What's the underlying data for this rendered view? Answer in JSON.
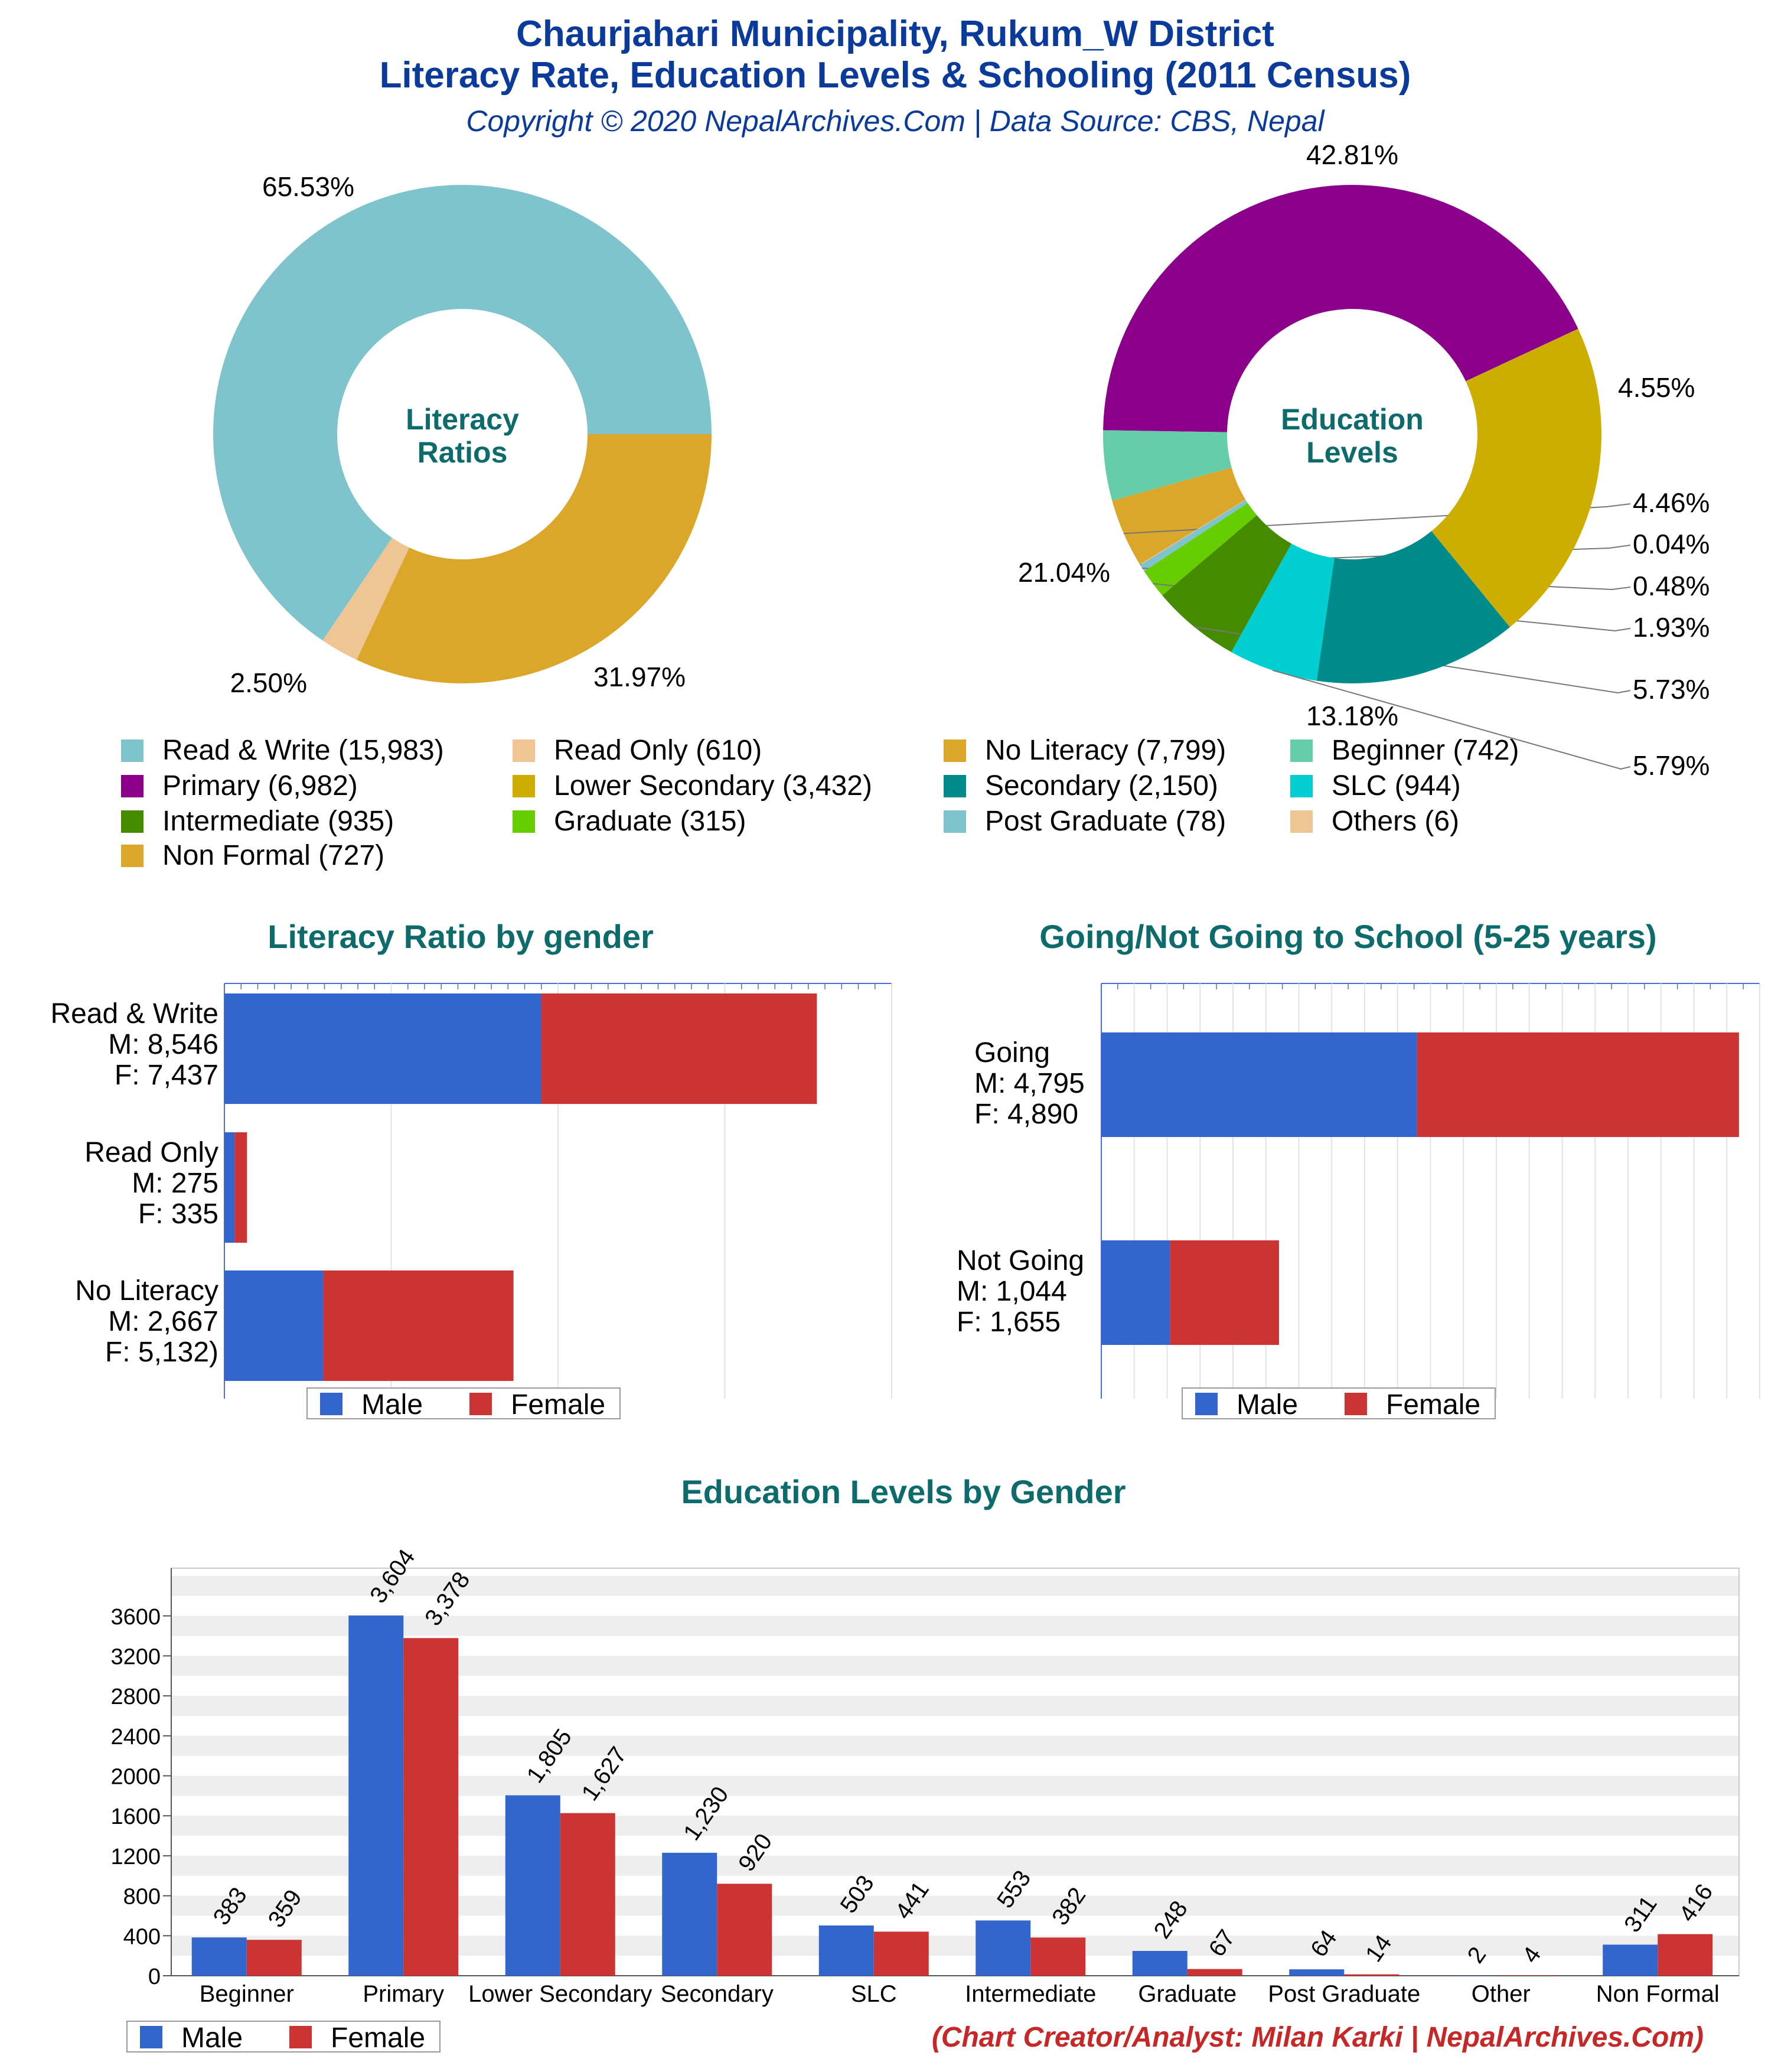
{
  "header": {
    "title_line1": "Chaurjahari Municipality, Rukum_W District",
    "title_line2": "Literacy Rate, Education Levels & Schooling (2011 Census)",
    "copyright": "Copyright © 2020 NepalArchives.Com | Data Source: CBS, Nepal"
  },
  "colors": {
    "male": "#3366cc",
    "female": "#cc3333",
    "title": "#0a3a9a",
    "section_title": "#0e6b6b",
    "credit": "#c62828"
  },
  "legend_items": [
    {
      "label": "Read & Write (15,983)",
      "color": "#7fc4cc"
    },
    {
      "label": "Read Only (610)",
      "color": "#efc594"
    },
    {
      "label": "No Literacy (7,799)",
      "color": "#dba72a"
    },
    {
      "label": "Beginner (742)",
      "color": "#66cdaa"
    },
    {
      "label": "Primary (6,982)",
      "color": "#8b008b"
    },
    {
      "label": "Lower Secondary (3,432)",
      "color": "#ccad00"
    },
    {
      "label": "Secondary (2,150)",
      "color": "#008b8b"
    },
    {
      "label": "SLC (944)",
      "color": "#00ced1"
    },
    {
      "label": "Intermediate (935)",
      "color": "#458b00"
    },
    {
      "label": "Graduate (315)",
      "color": "#66cd00"
    },
    {
      "label": "Post Graduate (78)",
      "color": "#7fc4cc"
    },
    {
      "label": "Others (6)",
      "color": "#efc594"
    },
    {
      "label": "Non Formal (727)",
      "color": "#dba72a"
    }
  ],
  "legend_labels": {
    "male": "Male",
    "female": "Female"
  },
  "chart_data": [
    {
      "type": "pie",
      "title": "Literacy Ratios",
      "center_label": [
        "Literacy",
        "Ratios"
      ],
      "slices": [
        {
          "name": "Read & Write",
          "value": 15983,
          "percent_label": "65.53%",
          "color": "#7fc4cc"
        },
        {
          "name": "Read Only",
          "value": 610,
          "percent_label": "2.50%",
          "color": "#efc594"
        },
        {
          "name": "No Literacy",
          "value": 7799,
          "percent_label": "31.97%",
          "color": "#dba72a"
        }
      ]
    },
    {
      "type": "pie",
      "title": "Education Levels",
      "center_label": [
        "Education",
        "Levels"
      ],
      "slices": [
        {
          "name": "Primary",
          "value": 6982,
          "percent_label": "42.81%",
          "color": "#8b008b"
        },
        {
          "name": "Beginner",
          "value": 742,
          "percent_label": "4.55%",
          "color": "#66cdaa"
        },
        {
          "name": "Non Formal",
          "value": 727,
          "percent_label": "4.46%",
          "color": "#dba72a"
        },
        {
          "name": "Others",
          "value": 6,
          "percent_label": "0.04%",
          "color": "#efc594"
        },
        {
          "name": "Post Graduate",
          "value": 78,
          "percent_label": "0.48%",
          "color": "#7fc4cc"
        },
        {
          "name": "Graduate",
          "value": 315,
          "percent_label": "1.93%",
          "color": "#66cd00"
        },
        {
          "name": "Intermediate",
          "value": 935,
          "percent_label": "5.73%",
          "color": "#458b00"
        },
        {
          "name": "SLC",
          "value": 944,
          "percent_label": "5.79%",
          "color": "#00ced1"
        },
        {
          "name": "Secondary",
          "value": 2150,
          "percent_label": "13.18%",
          "color": "#008b8b"
        },
        {
          "name": "Lower Secondary",
          "value": 3432,
          "percent_label": "21.04%",
          "color": "#ccad00"
        }
      ]
    },
    {
      "type": "bar",
      "orientation": "horizontal",
      "stacked": true,
      "title": "Literacy Ratio by gender",
      "categories": [
        {
          "lines": [
            "Read & Write",
            "M: 8,546",
            "F: 7,437"
          ]
        },
        {
          "lines": [
            "Read Only",
            "M: 275",
            "F: 335"
          ]
        },
        {
          "lines": [
            "No Literacy",
            "M: 2,667",
            "F: 5,132)"
          ]
        }
      ],
      "series": [
        {
          "name": "Male",
          "values": [
            8546,
            275,
            2667
          ]
        },
        {
          "name": "Female",
          "values": [
            7437,
            335,
            5132
          ]
        }
      ],
      "xlim": [
        0,
        18000
      ],
      "legend": "bottom"
    },
    {
      "type": "bar",
      "orientation": "horizontal",
      "stacked": true,
      "title": "Going/Not Going to School (5-25 years)",
      "categories": [
        {
          "lines": [
            "Going",
            "M: 4,795",
            "F: 4,890"
          ]
        },
        {
          "lines": [
            "Not Going",
            "M: 1,044",
            "F: 1,655"
          ]
        }
      ],
      "series": [
        {
          "name": "Male",
          "values": [
            4795,
            1044
          ]
        },
        {
          "name": "Female",
          "values": [
            4890,
            1655
          ]
        }
      ],
      "xlim": [
        0,
        10000
      ],
      "legend": "bottom"
    },
    {
      "type": "bar",
      "title": "Education Levels by Gender",
      "categories": [
        "Beginner",
        "Primary",
        "Lower Secondary",
        "Secondary",
        "SLC",
        "Intermediate",
        "Graduate",
        "Post Graduate",
        "Other",
        "Non Formal"
      ],
      "series": [
        {
          "name": "Male",
          "values": [
            383,
            3604,
            1805,
            1230,
            503,
            553,
            248,
            64,
            2,
            311
          ],
          "labels": [
            "383",
            "3,604",
            "1,805",
            "1,230",
            "503",
            "553",
            "248",
            "64",
            "2",
            "311"
          ]
        },
        {
          "name": "Female",
          "values": [
            359,
            3378,
            1627,
            920,
            441,
            382,
            67,
            14,
            4,
            416
          ],
          "labels": [
            "359",
            "3,378",
            "1,627",
            "920",
            "441",
            "382",
            "67",
            "14",
            "4",
            "416"
          ]
        }
      ],
      "yticks": [
        "0",
        "400",
        "800",
        "1200",
        "1600",
        "2000",
        "2400",
        "2800",
        "3200",
        "3600"
      ],
      "ylim": [
        0,
        3900
      ],
      "grid": true,
      "legend": "bottom-left"
    }
  ],
  "footer": {
    "credit": "(Chart Creator/Analyst: Milan Karki | NepalArchives.Com)"
  }
}
